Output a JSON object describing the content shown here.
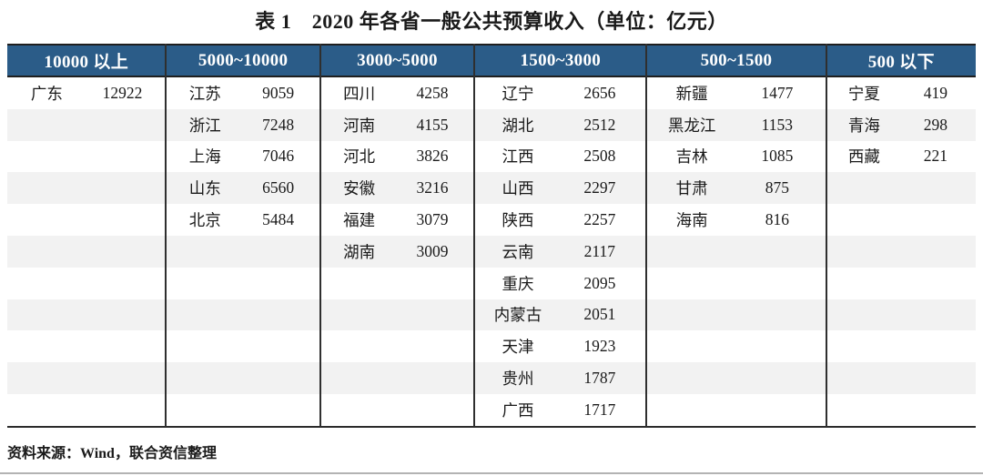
{
  "title": "表 1　2020 年各省一般公共预算收入（单位：亿元）",
  "source_note": "资料来源：Wind，联合资信整理",
  "colors": {
    "header_bg": "#2B5C88",
    "header_text": "#FFFFFF",
    "row_alt": "#F2F2F2",
    "border_dark": "#2B2B2B"
  },
  "chart_data": {
    "type": "table",
    "title": "表 1　2020 年各省一般公共预算收入（单位：亿元）",
    "unit": "亿元",
    "row_count": 11,
    "columns": [
      {
        "header": "10000 以上",
        "entries": [
          {
            "name": "广东",
            "value": "12922"
          }
        ]
      },
      {
        "header": "5000~10000",
        "entries": [
          {
            "name": "江苏",
            "value": "9059"
          },
          {
            "name": "浙江",
            "value": "7248"
          },
          {
            "name": "上海",
            "value": "7046"
          },
          {
            "name": "山东",
            "value": "6560"
          },
          {
            "name": "北京",
            "value": "5484"
          }
        ]
      },
      {
        "header": "3000~5000",
        "entries": [
          {
            "name": "四川",
            "value": "4258"
          },
          {
            "name": "河南",
            "value": "4155"
          },
          {
            "name": "河北",
            "value": "3826"
          },
          {
            "name": "安徽",
            "value": "3216"
          },
          {
            "name": "福建",
            "value": "3079"
          },
          {
            "name": "湖南",
            "value": "3009"
          }
        ]
      },
      {
        "header": "1500~3000",
        "entries": [
          {
            "name": "辽宁",
            "value": "2656"
          },
          {
            "name": "湖北",
            "value": "2512"
          },
          {
            "name": "江西",
            "value": "2508"
          },
          {
            "name": "山西",
            "value": "2297"
          },
          {
            "name": "陕西",
            "value": "2257"
          },
          {
            "name": "云南",
            "value": "2117"
          },
          {
            "name": "重庆",
            "value": "2095"
          },
          {
            "name": "内蒙古",
            "value": "2051"
          },
          {
            "name": "天津",
            "value": "1923"
          },
          {
            "name": "贵州",
            "value": "1787"
          },
          {
            "name": "广西",
            "value": "1717"
          }
        ]
      },
      {
        "header": "500~1500",
        "entries": [
          {
            "name": "新疆",
            "value": "1477"
          },
          {
            "name": "黑龙江",
            "value": "1153"
          },
          {
            "name": "吉林",
            "value": "1085"
          },
          {
            "name": "甘肃",
            "value": "875"
          },
          {
            "name": "海南",
            "value": "816"
          }
        ]
      },
      {
        "header": "500 以下",
        "entries": [
          {
            "name": "宁夏",
            "value": "419"
          },
          {
            "name": "青海",
            "value": "298"
          },
          {
            "name": "西藏",
            "value": "221"
          }
        ]
      }
    ]
  }
}
